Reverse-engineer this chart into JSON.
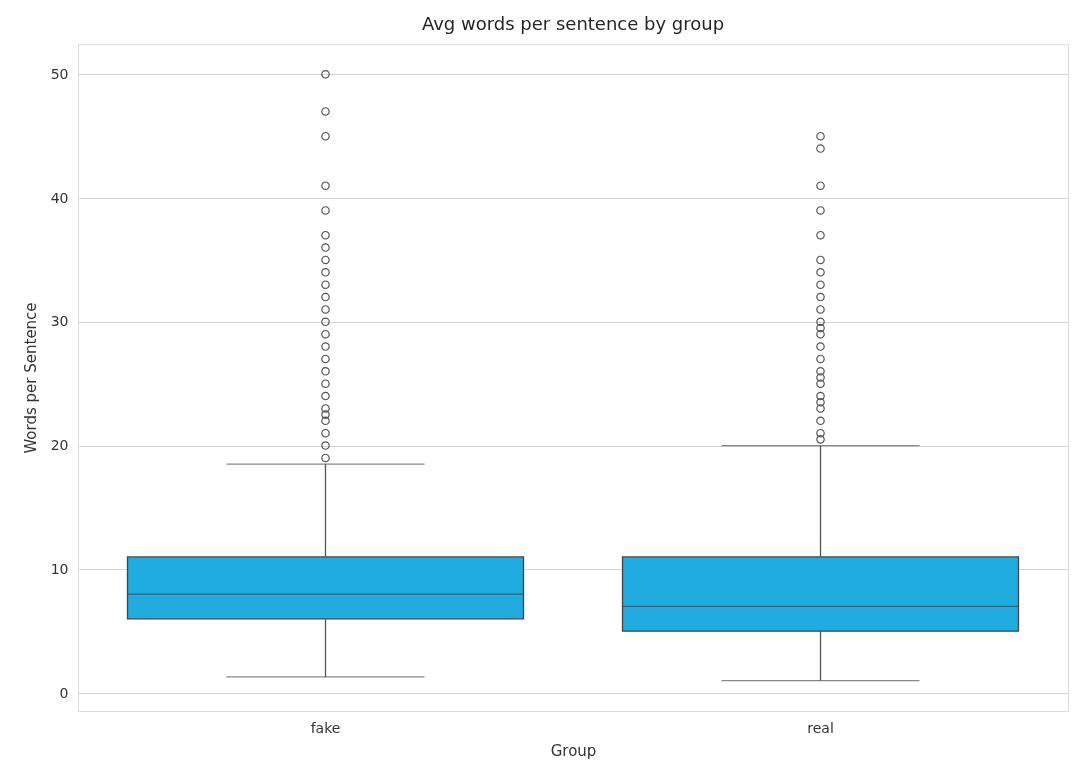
{
  "chart_data": {
    "type": "box",
    "title": "Avg words per sentence by group",
    "xlabel": "Group",
    "ylabel": "Words per Sentence",
    "categories": [
      "fake",
      "real"
    ],
    "series": [
      {
        "color": "#20acdf",
        "boxes": [
          {
            "low": 1.3,
            "q1": 6,
            "median": 8,
            "q3": 11,
            "high": 18.5,
            "outliers": [
              19,
              20,
              21,
              22,
              22.5,
              23,
              24,
              25,
              26,
              27,
              28,
              29,
              30,
              31,
              32,
              33,
              34,
              35,
              36,
              37,
              39,
              41,
              45,
              47,
              50
            ]
          },
          {
            "low": 1,
            "q1": 5,
            "median": 7,
            "q3": 11,
            "high": 20,
            "outliers": [
              20.5,
              21,
              22,
              23,
              23.5,
              24,
              25,
              25.5,
              26,
              27,
              28,
              29,
              29.5,
              30,
              31,
              32,
              33,
              34,
              35,
              37,
              39,
              41,
              44,
              45
            ]
          }
        ]
      }
    ],
    "ylim": [
      -1.45,
      52.45
    ],
    "yticks": [
      0,
      10,
      20,
      30,
      40,
      50
    ],
    "grid": "y",
    "marker": "circle"
  }
}
